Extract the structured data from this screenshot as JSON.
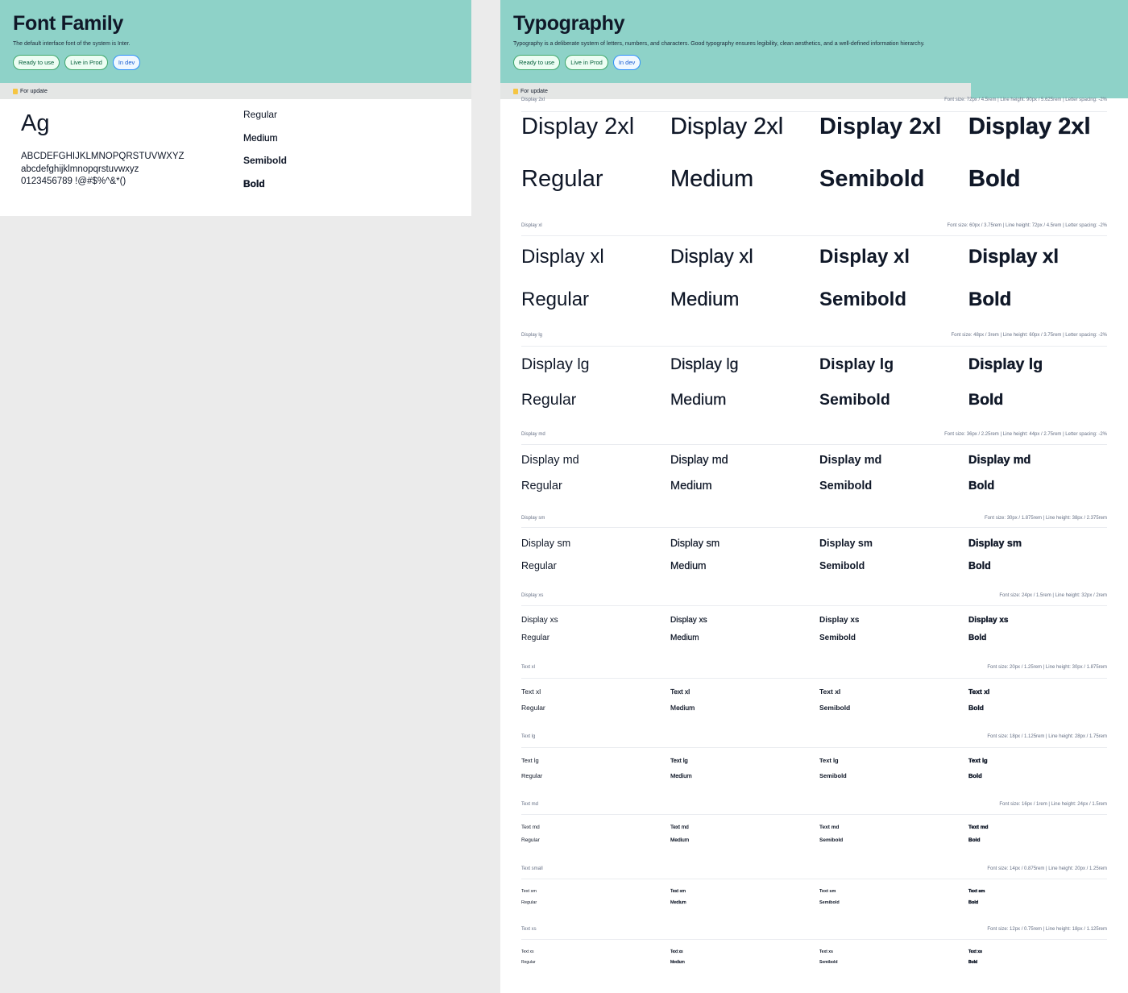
{
  "font_family": {
    "title": "Font Family",
    "description": "The default interface font of the system is Inter.",
    "pills": {
      "ready": "Ready to use",
      "prod": "Live in Prod",
      "dev": "In dev"
    },
    "update_note": "For update",
    "sample": "Ag",
    "uppercase": "ABCDEFGHIJKLMNOPQRSTUVWXYZ",
    "lowercase": "abcdefghijklmnopqrstuvwxyz",
    "numerals": "0123456789 !@#$%^&*()",
    "weights": [
      "Regular",
      "Medium",
      "Semibold",
      "Bold"
    ]
  },
  "typography": {
    "title": "Typography",
    "description": "Typography is a deliberate system of letters, numbers, and characters. Good typography ensures legibility, clean aesthetics, and a well-defined information hierarchy.",
    "pills": {
      "ready": "Ready to use",
      "prod": "Live in Prod",
      "dev": "In dev"
    },
    "update_note": "For update",
    "weights": [
      "Regular",
      "Medium",
      "Semibold",
      "Bold"
    ],
    "styles": [
      {
        "name": "Display 2xl",
        "sample": "Display 2xl",
        "spec": "Font size: 72px / 4.5rem | Line height: 90px / 5.625rem | Letter spacing: -2%"
      },
      {
        "name": "Display xl",
        "sample": "Display xl",
        "spec": "Font size: 60px / 3.75rem | Line height: 72px / 4.5rem | Letter spacing: -2%"
      },
      {
        "name": "Display lg",
        "sample": "Display lg",
        "spec": "Font size: 48px / 3rem | Line height: 60px / 3.75rem | Letter spacing: -2%"
      },
      {
        "name": "Display md",
        "sample": "Display md",
        "spec": "Font size: 36px / 2.25rem | Line height: 44px / 2.75rem | Letter spacing: -2%"
      },
      {
        "name": "Display sm",
        "sample": "Display sm",
        "spec": "Font size: 30px / 1.875rem | Line height: 38px / 2.375rem"
      },
      {
        "name": "Display xs",
        "sample": "Display xs",
        "spec": "Font size: 24px / 1.5rem | Line height: 32px / 2rem"
      },
      {
        "name": "Text xl",
        "sample": "Text xl",
        "spec": "Font size: 20px / 1.25rem | Line height: 30px / 1.875rem"
      },
      {
        "name": "Text lg",
        "sample": "Text lg",
        "spec": "Font size: 18px / 1.125rem | Line height: 28px / 1.75rem"
      },
      {
        "name": "Text md",
        "sample": "Text md",
        "spec": "Font size: 16px / 1rem | Line height: 24px / 1.5rem"
      },
      {
        "name": "Text small",
        "sample": "Text sm",
        "spec": "Font size: 14px / 0.875rem | Line height: 20px / 1.25rem"
      },
      {
        "name": "Text xs",
        "sample": "Text xs",
        "spec": "Font size: 12px / 0.75rem | Line height: 18px / 1.125rem"
      }
    ]
  },
  "colors": {
    "header_bg": "#8ed2c8",
    "canvas_bg": "#ebebeb",
    "text": "#101828",
    "note_icon": "#f5c542"
  },
  "icons": {
    "update_note": "note-icon"
  }
}
